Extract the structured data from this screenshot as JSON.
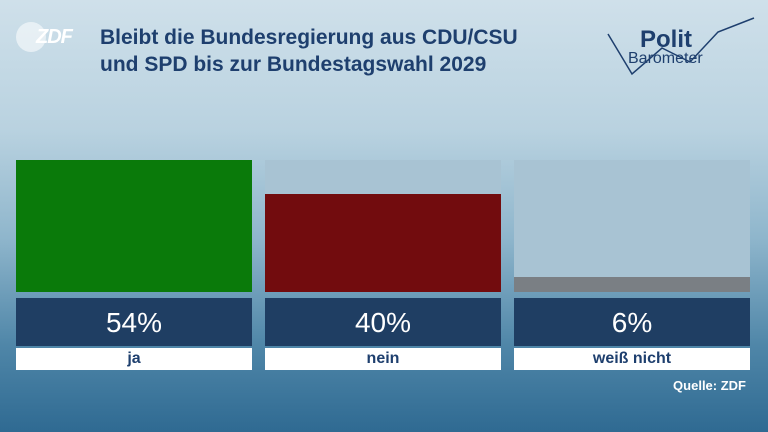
{
  "header": {
    "logo_text": "ZDF",
    "title_line1": "Bleibt die Bundesregierung aus CDU/CSU",
    "title_line2": "und SPD bis zur Bundestagswahl 2029",
    "brand_line1": "Polit",
    "brand_line2": "Barometer"
  },
  "chart_data": {
    "type": "bar",
    "title": "Bleibt die Bundesregierung aus CDU/CSU und SPD bis zur Bundestagswahl 2029",
    "categories": [
      "ja",
      "nein",
      "weiß nicht"
    ],
    "values": [
      54,
      40,
      6
    ],
    "value_labels": [
      "54%",
      "40%",
      "6%"
    ],
    "colors": [
      "#0a7a0a",
      "#720c0e",
      "#7a7f84"
    ],
    "ylim": [
      0,
      54
    ],
    "grid": false
  },
  "footer": {
    "source": "Quelle: ZDF"
  }
}
